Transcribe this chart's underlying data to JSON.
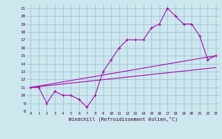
{
  "xlabel": "Windchill (Refroidissement éolien,°C)",
  "bg_color": "#cce8ee",
  "line_color": "#aa00aa",
  "grid_color": "#99bbcc",
  "xlim": [
    -0.5,
    23.5
  ],
  "ylim": [
    8,
    21.5
  ],
  "yticks": [
    8,
    9,
    10,
    11,
    12,
    13,
    14,
    15,
    16,
    17,
    18,
    19,
    20,
    21
  ],
  "xticks": [
    0,
    1,
    2,
    3,
    4,
    5,
    6,
    7,
    8,
    9,
    10,
    11,
    12,
    13,
    14,
    15,
    16,
    17,
    18,
    19,
    20,
    21,
    22,
    23
  ],
  "line1_x": [
    0,
    1,
    2,
    3,
    4,
    5,
    6,
    7,
    8,
    9,
    10,
    11,
    12,
    13,
    14,
    15,
    16,
    17,
    18,
    19,
    20,
    21,
    22,
    23
  ],
  "line1_y": [
    11,
    11,
    9,
    10.5,
    10,
    10,
    9.5,
    8.5,
    10,
    13,
    14.5,
    16,
    17,
    17,
    17,
    18.5,
    19,
    21,
    20,
    19,
    19,
    17.5,
    14.5,
    15
  ],
  "line2_x": [
    0,
    23
  ],
  "line2_y": [
    11,
    15
  ],
  "line3_x": [
    0,
    23
  ],
  "line3_y": [
    11,
    13.5
  ]
}
